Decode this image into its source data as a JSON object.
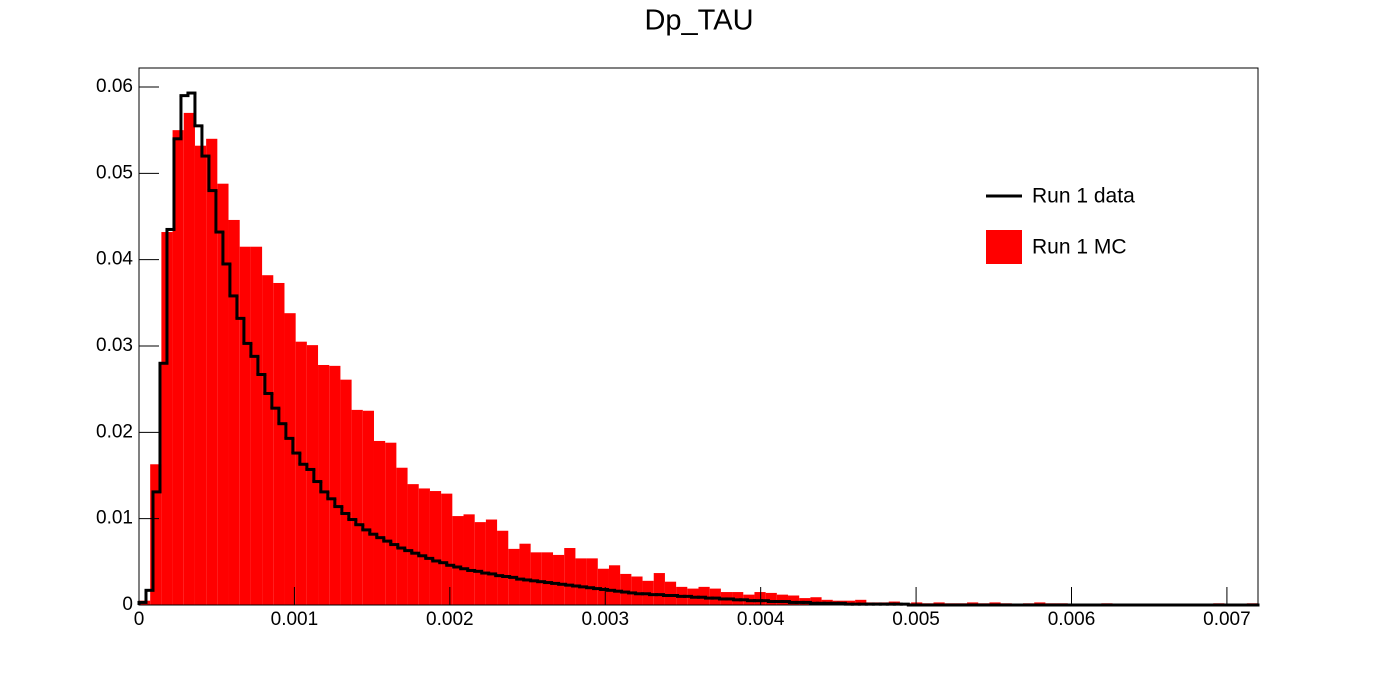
{
  "chart_data": {
    "type": "histogram",
    "title": "Dp_TAU",
    "series": [
      {
        "name": "Run 1 data",
        "color": "#000000",
        "style": "step",
        "bins": [
          0,
          4.5e-05,
          9e-05,
          0.000135,
          0.00018,
          0.000225,
          0.00027,
          0.000315,
          0.00036,
          0.000405,
          0.00045,
          0.000495,
          0.00054,
          0.000585,
          0.00063,
          0.000675,
          0.00072,
          0.000765,
          0.00081,
          0.000855,
          0.0009,
          0.000945,
          0.00099,
          0.001035,
          0.00108,
          0.001125,
          0.00117,
          0.001215,
          0.00126,
          0.001305,
          0.00135,
          0.001395,
          0.00144,
          0.001485,
          0.00153,
          0.001575,
          0.00162,
          0.001665,
          0.00171,
          0.001755,
          0.0018,
          0.001845,
          0.00189,
          0.001935,
          0.00198,
          0.002025,
          0.00207,
          0.002115,
          0.00216,
          0.002205,
          0.00225,
          0.002295,
          0.00234,
          0.002385,
          0.00243,
          0.002475,
          0.00252,
          0.002565,
          0.00261,
          0.002655,
          0.0027,
          0.002745,
          0.00279,
          0.002835,
          0.00288,
          0.002925,
          0.00297,
          0.003015,
          0.00306,
          0.003105,
          0.00315,
          0.003195,
          0.00324,
          0.003285,
          0.00333,
          0.003375,
          0.00342,
          0.003465,
          0.00351,
          0.003555,
          0.0036,
          0.003645,
          0.00369,
          0.003735,
          0.00378,
          0.003825,
          0.00387,
          0.003915,
          0.00396,
          0.004005,
          0.00405,
          0.004095,
          0.00414,
          0.004185,
          0.00423,
          0.004275,
          0.00432,
          0.004365,
          0.00441,
          0.004455,
          0.0045,
          0.004545,
          0.00459,
          0.004635,
          0.00468,
          0.004725,
          0.00477,
          0.004815,
          0.00486,
          0.004905,
          0.00495,
          0.004995,
          0.00504,
          0.005085,
          0.00513,
          0.005175,
          0.00522,
          0.005265,
          0.00531,
          0.005355,
          0.0054,
          0.005445,
          0.00549,
          0.005535,
          0.00558,
          0.005625,
          0.00567,
          0.005715,
          0.00576,
          0.005805,
          0.00585,
          0.005895,
          0.00594,
          0.005985,
          0.00603,
          0.006075,
          0.00612,
          0.006165,
          0.00621,
          0.006255,
          0.0063,
          0.006345,
          0.00639,
          0.006435,
          0.00648,
          0.006525,
          0.00657,
          0.006615,
          0.00666,
          0.006705,
          0.00675,
          0.006795,
          0.00684,
          0.006885,
          0.00693,
          0.006975,
          0.00702,
          0.007065,
          0.00711,
          0.007155,
          0.0072
        ],
        "values": [
          0.0003,
          0.0017,
          0.0131,
          0.028,
          0.0435,
          0.054,
          0.059,
          0.0593,
          0.0555,
          0.052,
          0.048,
          0.0432,
          0.0395,
          0.0358,
          0.0332,
          0.0303,
          0.0288,
          0.0267,
          0.0245,
          0.0228,
          0.021,
          0.0193,
          0.0176,
          0.0163,
          0.0157,
          0.0143,
          0.0131,
          0.0123,
          0.0114,
          0.0106,
          0.0099,
          0.0093,
          0.0087,
          0.0082,
          0.0078,
          0.0074,
          0.007,
          0.0066,
          0.0063,
          0.006,
          0.0057,
          0.0054,
          0.0051,
          0.0049,
          0.0046,
          0.0044,
          0.0042,
          0.004,
          0.0039,
          0.0037,
          0.0036,
          0.0034,
          0.0033,
          0.0032,
          0.003,
          0.0029,
          0.0028,
          0.0027,
          0.0026,
          0.0025,
          0.0024,
          0.0023,
          0.0022,
          0.0021,
          0.002,
          0.0019,
          0.0018,
          0.0017,
          0.0016,
          0.0015,
          0.0014,
          0.0013,
          0.0013,
          0.0012,
          0.0012,
          0.0011,
          0.0011,
          0.001,
          0.001,
          0.0009,
          0.0009,
          0.0008,
          0.0008,
          0.0007,
          0.0007,
          0.0006,
          0.0006,
          0.0005,
          0.0005,
          0.0005,
          0.0004,
          0.0004,
          0.0004,
          0.0003,
          0.0003,
          0.0003,
          0.0002,
          0.0002,
          0.0002,
          0.0002,
          0.0002,
          0.0001,
          0.0001,
          0.0001,
          0.0001,
          0.0001,
          0.0001,
          0.0001,
          0.0001,
          0.0001,
          0,
          0,
          0,
          0,
          0,
          0,
          0,
          0,
          0,
          0,
          0,
          0,
          0,
          0,
          0,
          0,
          0,
          0,
          0,
          0,
          0,
          0,
          0,
          0,
          0,
          0,
          0,
          0,
          0,
          0,
          0,
          0,
          0,
          0,
          0,
          0,
          0,
          0,
          0,
          0,
          0,
          0,
          0,
          0,
          0,
          0,
          0,
          0,
          0,
          0
        ]
      },
      {
        "name": "Run 1 MC",
        "color": "#ff0000",
        "style": "filled",
        "bins": [
          0,
          7.2e-05,
          0.000144,
          0.000216,
          0.000288,
          0.00036,
          0.000432,
          0.000504,
          0.000576,
          0.000648,
          0.00072,
          0.000792,
          0.000864,
          0.000936,
          0.001008,
          0.00108,
          0.001152,
          0.001224,
          0.001296,
          0.001368,
          0.00144,
          0.001512,
          0.001584,
          0.001656,
          0.001728,
          0.0018,
          0.001872,
          0.001944,
          0.002016,
          0.002088,
          0.00216,
          0.002232,
          0.002304,
          0.002376,
          0.002448,
          0.00252,
          0.002592,
          0.002664,
          0.002736,
          0.002808,
          0.00288,
          0.002952,
          0.003024,
          0.003096,
          0.003168,
          0.00324,
          0.003312,
          0.003384,
          0.003456,
          0.003528,
          0.0036,
          0.003672,
          0.003744,
          0.003816,
          0.003888,
          0.00396,
          0.004032,
          0.004104,
          0.004176,
          0.004248,
          0.00432,
          0.004392,
          0.004464,
          0.004536,
          0.004608,
          0.00468,
          0.004752,
          0.004824,
          0.004896,
          0.004968,
          0.00504,
          0.005112,
          0.005184,
          0.005256,
          0.005328,
          0.0054,
          0.005472,
          0.005544,
          0.005616,
          0.005688,
          0.00576,
          0.005832,
          0.005904,
          0.005976,
          0.006048,
          0.00612,
          0.006192,
          0.006264,
          0.006336,
          0.006408,
          0.00648,
          0.006552,
          0.006624,
          0.006696,
          0.006768,
          0.00684,
          0.006912,
          0.006984,
          0.007056,
          0.007128,
          0.0072
        ],
        "values": [
          0.0005,
          0.0163,
          0.0432,
          0.055,
          0.057,
          0.0532,
          0.054,
          0.0488,
          0.0446,
          0.0415,
          0.0415,
          0.0382,
          0.0373,
          0.0338,
          0.0305,
          0.0301,
          0.0278,
          0.0277,
          0.0261,
          0.0226,
          0.0225,
          0.019,
          0.0188,
          0.0159,
          0.014,
          0.0135,
          0.0132,
          0.0129,
          0.0103,
          0.0105,
          0.0096,
          0.0099,
          0.0086,
          0.0065,
          0.0071,
          0.0061,
          0.0061,
          0.0058,
          0.0066,
          0.0054,
          0.0054,
          0.0042,
          0.0046,
          0.0036,
          0.0033,
          0.0028,
          0.0037,
          0.0027,
          0.0021,
          0.0019,
          0.0021,
          0.0019,
          0.0015,
          0.0015,
          0.0012,
          0.0015,
          0.0014,
          0.0012,
          0.0011,
          0.0008,
          0.0009,
          0.0006,
          0.0005,
          0.0005,
          0.0006,
          0.0003,
          0.0003,
          0.0004,
          0.0002,
          0.0003,
          0.0002,
          0.0003,
          0.0002,
          0.0002,
          0.0003,
          0.0002,
          0.0003,
          0.0002,
          0.0001,
          0.0002,
          0.0003,
          0.0002,
          0.0002,
          0.0001,
          0.0001,
          0.0001,
          0.0002,
          0.0001,
          0.0001,
          0.0001,
          0.0001,
          0,
          0.0001,
          0,
          0.0001,
          0,
          0.0002,
          0,
          0,
          0.0002
        ]
      }
    ],
    "xlim": [
      0,
      0.0072
    ],
    "xticks": [
      0,
      0.001,
      0.002,
      0.003,
      0.004,
      0.005,
      0.006,
      0.007
    ],
    "ylim": [
      0,
      0.0622
    ],
    "yticks": [
      0,
      0.01,
      0.02,
      0.03,
      0.04,
      0.05,
      0.06
    ],
    "grid": false,
    "legend": "upper right"
  }
}
